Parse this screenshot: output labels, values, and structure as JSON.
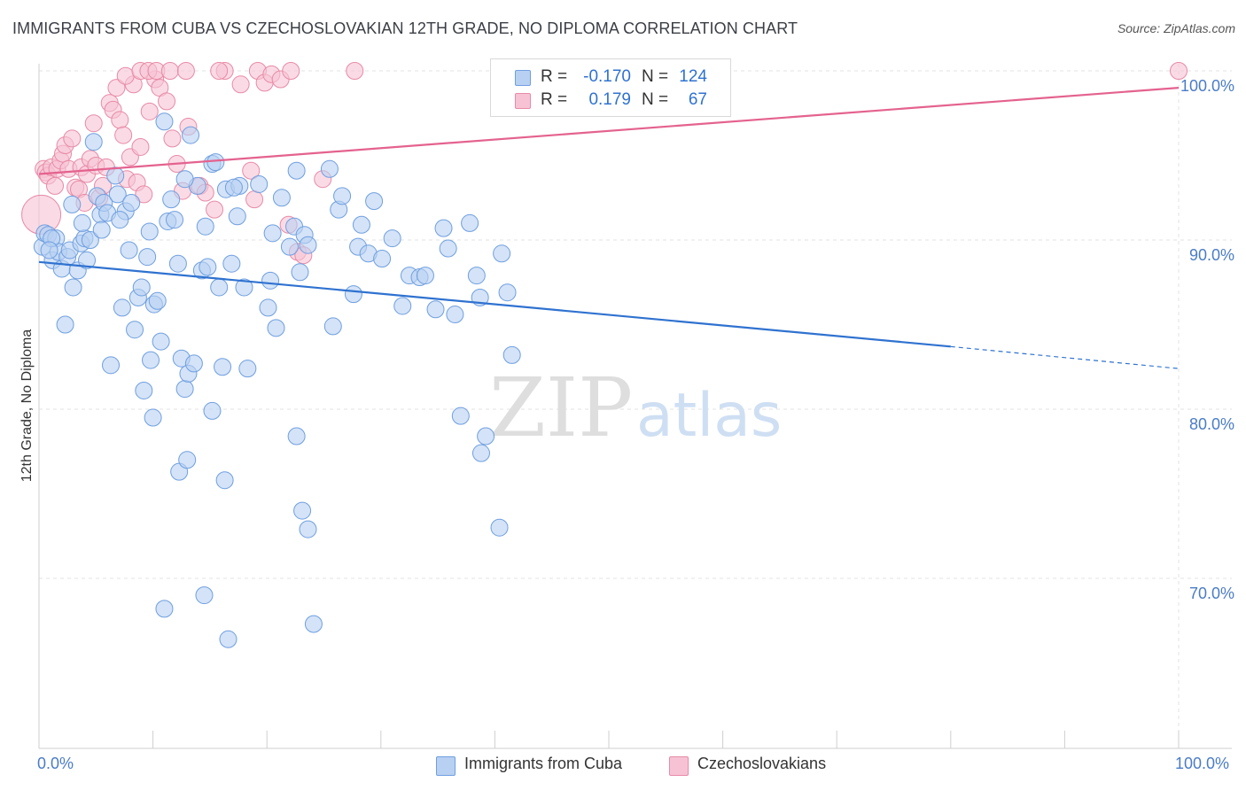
{
  "header": {
    "title": "IMMIGRANTS FROM CUBA VS CZECHOSLOVAKIAN 12TH GRADE, NO DIPLOMA CORRELATION CHART",
    "source": "Source: ZipAtlas.com"
  },
  "legend": {
    "rows": [
      {
        "r_label": "R =",
        "r_value": "-0.170",
        "n_label": "N =",
        "n_value": "124"
      },
      {
        "r_label": "R =",
        "r_value": "0.179",
        "n_label": "N =",
        "n_value": "67"
      }
    ]
  },
  "bottom_legend": {
    "cuba": "Immigrants from Cuba",
    "czech": "Czechoslovakians"
  },
  "axis": {
    "ylabel": "12th Grade, No Diploma",
    "x_min_label": "0.0%",
    "x_max_label": "100.0%"
  },
  "watermark": {
    "zip": "ZIP",
    "atlas": "atlas"
  },
  "colors": {
    "blue_fill": "#b8d0f2",
    "blue_stroke": "#6f9fe0",
    "blue_line": "#2f72d0",
    "pink_fill": "#f7c3d4",
    "pink_stroke": "#e88aa7",
    "pink_line": "#e4628f",
    "tick_text": "#4a7cc7",
    "grid": "#e3e3e3"
  },
  "chart_data": {
    "type": "scatter",
    "xlim": [
      0,
      100
    ],
    "ylim": [
      60,
      102
    ],
    "y_ticks": [
      {
        "value": 100,
        "label": "100.0%"
      },
      {
        "value": 90,
        "label": "90.0%"
      },
      {
        "value": 80,
        "label": "80.0%"
      },
      {
        "value": 70,
        "label": "70.0%"
      }
    ],
    "grid": true,
    "series": [
      {
        "name": "Immigrants from Cuba",
        "color": "#6f9fe0",
        "trend": {
          "x": [
            0,
            80
          ],
          "y": [
            88.7,
            83.7
          ],
          "dashed_to": [
            100,
            82.4
          ]
        },
        "points": [
          [
            0.3,
            89.6
          ],
          [
            0.5,
            90.4
          ],
          [
            0.8,
            90.3
          ],
          [
            1.2,
            88.8
          ],
          [
            1.5,
            90.1
          ],
          [
            1.7,
            89.3
          ],
          [
            2,
            88.3
          ],
          [
            2.3,
            85
          ],
          [
            2.5,
            89
          ],
          [
            2.7,
            89.4
          ],
          [
            3,
            87.2
          ],
          [
            3.4,
            88.2
          ],
          [
            3.7,
            89.8
          ],
          [
            4,
            90.1
          ],
          [
            4.2,
            88.8
          ],
          [
            4.5,
            90
          ],
          [
            4.8,
            95.8
          ],
          [
            5.1,
            92.6
          ],
          [
            5.4,
            91.5
          ],
          [
            5.7,
            92.2
          ],
          [
            6,
            91.6
          ],
          [
            6.3,
            82.6
          ],
          [
            6.7,
            93.8
          ],
          [
            6.9,
            92.7
          ],
          [
            7.3,
            86
          ],
          [
            7.6,
            91.7
          ],
          [
            7.9,
            89.4
          ],
          [
            8.1,
            92.2
          ],
          [
            8.4,
            84.7
          ],
          [
            8.7,
            86.6
          ],
          [
            9,
            87.2
          ],
          [
            9.2,
            81.1
          ],
          [
            9.5,
            89
          ],
          [
            9.8,
            82.9
          ],
          [
            10.1,
            86.2
          ],
          [
            10.4,
            86.4
          ],
          [
            10.7,
            84
          ],
          [
            11,
            97
          ],
          [
            11.3,
            91.1
          ],
          [
            11.6,
            92.4
          ],
          [
            11.9,
            91.2
          ],
          [
            12.2,
            88.6
          ],
          [
            12.5,
            83
          ],
          [
            12.8,
            81.2
          ],
          [
            13.1,
            82.1
          ],
          [
            13.3,
            96.2
          ],
          [
            13.6,
            82.7
          ],
          [
            13.9,
            93.2
          ],
          [
            14.3,
            88.2
          ],
          [
            14.6,
            90.8
          ],
          [
            14.8,
            88.4
          ],
          [
            15.2,
            94.5
          ],
          [
            15.5,
            94.6
          ],
          [
            15.8,
            87.2
          ],
          [
            16.1,
            82.5
          ],
          [
            16.4,
            93
          ],
          [
            16.9,
            88.6
          ],
          [
            17.4,
            91.4
          ],
          [
            17.6,
            93.2
          ],
          [
            18,
            87.2
          ],
          [
            18.3,
            82.4
          ],
          [
            19.3,
            93.3
          ],
          [
            20.1,
            86
          ],
          [
            20.5,
            90.4
          ],
          [
            20.8,
            84.8
          ],
          [
            21.3,
            92.5
          ],
          [
            22,
            89.6
          ],
          [
            22.4,
            90.8
          ],
          [
            22.6,
            94.1
          ],
          [
            22.9,
            88.1
          ],
          [
            23.3,
            90.3
          ],
          [
            23.6,
            89.7
          ],
          [
            25.5,
            94.2
          ],
          [
            25.8,
            84.9
          ],
          [
            26.3,
            91.8
          ],
          [
            26.6,
            92.6
          ],
          [
            27.6,
            86.8
          ],
          [
            28,
            89.6
          ],
          [
            28.3,
            90.9
          ],
          [
            28.9,
            89.2
          ],
          [
            29.4,
            92.3
          ],
          [
            30.1,
            88.9
          ],
          [
            31,
            90.1
          ],
          [
            31.9,
            86.1
          ],
          [
            32.5,
            87.9
          ],
          [
            33.4,
            87.8
          ],
          [
            33.9,
            87.9
          ],
          [
            34.8,
            85.9
          ],
          [
            35.5,
            90.7
          ],
          [
            35.9,
            89.5
          ],
          [
            36.5,
            85.6
          ],
          [
            37.8,
            91
          ],
          [
            38.4,
            87.9
          ],
          [
            38.7,
            86.6
          ],
          [
            40.6,
            89.2
          ],
          [
            41.1,
            86.9
          ],
          [
            41.5,
            83.2
          ],
          [
            10,
            79.5
          ],
          [
            11,
            68.2
          ],
          [
            12.3,
            76.3
          ],
          [
            13,
            77
          ],
          [
            14.5,
            69
          ],
          [
            15.2,
            79.9
          ],
          [
            16.3,
            75.8
          ],
          [
            16.6,
            66.4
          ],
          [
            22.6,
            78.4
          ],
          [
            23.1,
            74
          ],
          [
            23.6,
            72.9
          ],
          [
            24.1,
            67.3
          ],
          [
            37,
            79.6
          ],
          [
            38.8,
            77.4
          ],
          [
            39.2,
            78.4
          ],
          [
            40.4,
            73
          ],
          [
            12.8,
            93.6
          ],
          [
            17.1,
            93.1
          ],
          [
            1.1,
            90.1
          ],
          [
            2.9,
            92.1
          ],
          [
            3.8,
            91
          ],
          [
            7.1,
            91.2
          ],
          [
            9.7,
            90.5
          ],
          [
            0.9,
            89.4
          ],
          [
            5.5,
            90.6
          ],
          [
            20.3,
            87.6
          ]
        ]
      },
      {
        "name": "Czechoslovakians",
        "color": "#e88aa7",
        "trend": {
          "x": [
            0,
            100
          ],
          "y": [
            93.9,
            99.0
          ]
        },
        "points": [
          [
            0.2,
            91.5
          ],
          [
            0.4,
            94.2
          ],
          [
            0.6,
            94
          ],
          [
            0.8,
            93.8
          ],
          [
            1.1,
            94.3
          ],
          [
            1.4,
            93.2
          ],
          [
            1.6,
            94.2
          ],
          [
            1.9,
            94.7
          ],
          [
            2.1,
            95.1
          ],
          [
            2.3,
            95.6
          ],
          [
            2.6,
            94.2
          ],
          [
            2.9,
            96
          ],
          [
            3.2,
            93.1
          ],
          [
            3.5,
            93
          ],
          [
            3.7,
            94.3
          ],
          [
            4,
            92.2
          ],
          [
            4.2,
            93.9
          ],
          [
            4.5,
            94.8
          ],
          [
            4.8,
            96.9
          ],
          [
            5,
            94.4
          ],
          [
            5.3,
            92.5
          ],
          [
            5.6,
            93.2
          ],
          [
            5.9,
            94.3
          ],
          [
            6.2,
            98.1
          ],
          [
            6.5,
            97.7
          ],
          [
            6.8,
            99
          ],
          [
            7.1,
            97.1
          ],
          [
            7.4,
            96.2
          ],
          [
            7.7,
            93.6
          ],
          [
            8,
            94.9
          ],
          [
            8.3,
            99.2
          ],
          [
            8.6,
            93.4
          ],
          [
            8.9,
            95.5
          ],
          [
            9.2,
            92.7
          ],
          [
            9.7,
            97.6
          ],
          [
            10.2,
            99.5
          ],
          [
            10.6,
            99
          ],
          [
            11.2,
            98.2
          ],
          [
            11.7,
            96
          ],
          [
            12.1,
            94.5
          ],
          [
            12.6,
            92.9
          ],
          [
            13.1,
            96.7
          ],
          [
            14.1,
            93.2
          ],
          [
            14.6,
            92.8
          ],
          [
            15.4,
            91.8
          ],
          [
            16.3,
            100
          ],
          [
            17.7,
            99.2
          ],
          [
            19.2,
            100
          ],
          [
            19.8,
            99.3
          ],
          [
            20.4,
            99.8
          ],
          [
            21.2,
            99.5
          ],
          [
            21.9,
            90.9
          ],
          [
            22.7,
            89.3
          ],
          [
            23.2,
            89.1
          ],
          [
            7.6,
            99.7
          ],
          [
            8.9,
            100
          ],
          [
            9.6,
            100
          ],
          [
            10.3,
            100
          ],
          [
            11.5,
            100
          ],
          [
            12.9,
            100
          ],
          [
            15.8,
            100
          ],
          [
            22.1,
            100
          ],
          [
            18.9,
            92.4
          ],
          [
            24.9,
            93.6
          ],
          [
            18.6,
            94.1
          ],
          [
            27.7,
            100
          ],
          [
            100,
            100
          ]
        ]
      }
    ]
  }
}
